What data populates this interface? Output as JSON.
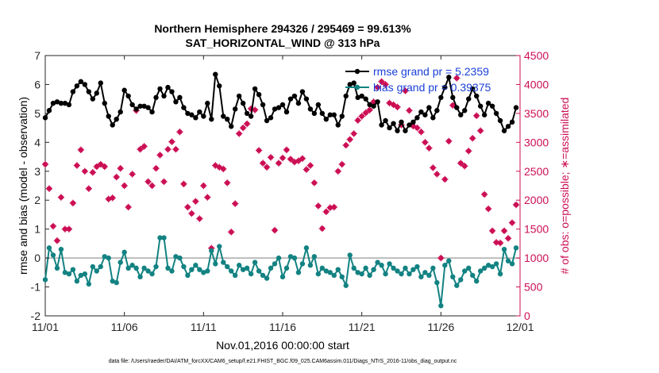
{
  "chart_data": {
    "type": "line",
    "title": "Northern Hemisphere 294326 / 295469 = 99.613%",
    "subtitle": "SAT_HORIZONTAL_WIND @ 313 hPa",
    "xlabel": "Nov.01,2016 00:00:00 start",
    "ylabel_left": "rmse and bias (model - observation)",
    "ylabel_right": "# of obs: o=possible; ∗=assimilated",
    "footnote": "data file: /Users/raeder/DAI/ATM_forcXX/CAM6_setup/f.e21.FHIST_BGC.f09_025.CAM6assim.011/Diags_NTrS_2016-11/obs_diag_output.nc",
    "xlim": [
      0,
      30
    ],
    "ylim_left": [
      -2,
      7
    ],
    "ylim_right": [
      0,
      4500
    ],
    "x_ticks": [
      0,
      5,
      10,
      15,
      20,
      25,
      30
    ],
    "x_tick_labels": [
      "11/01",
      "11/06",
      "11/11",
      "11/16",
      "11/21",
      "11/26",
      "12/01"
    ],
    "y_ticks_left": [
      "-2",
      "-1",
      "0",
      "1",
      "2",
      "3",
      "4",
      "5",
      "6",
      "7"
    ],
    "y_ticks_right": [
      "0",
      "500",
      "1000",
      "1500",
      "2000",
      "2500",
      "3000",
      "3500",
      "4000",
      "4500"
    ],
    "grid": false,
    "legend_position": "top-right",
    "colors": {
      "rmse": "#000000",
      "bias": "#138282",
      "obs": "#cc0f55",
      "ticks_right": "#cc0f55",
      "legend_text": "#1a3fd6",
      "zero_line": "#aaaaaa"
    },
    "series": [
      {
        "name": "rmse grand pr = 5.2359",
        "axis": "left",
        "x": [
          0.0,
          0.25,
          0.5,
          0.75,
          1.0,
          1.25,
          1.5,
          1.75,
          2.0,
          2.25,
          2.5,
          2.75,
          3.0,
          3.25,
          3.5,
          3.75,
          4.0,
          4.25,
          4.5,
          4.75,
          5.0,
          5.25,
          5.5,
          5.75,
          6.0,
          6.25,
          6.5,
          6.75,
          7.0,
          7.25,
          7.5,
          7.75,
          8.0,
          8.25,
          8.5,
          8.75,
          9.0,
          9.25,
          9.5,
          9.75,
          10.0,
          10.25,
          10.5,
          10.75,
          11.0,
          11.25,
          11.5,
          11.75,
          12.0,
          12.25,
          12.5,
          12.75,
          13.0,
          13.25,
          13.5,
          13.75,
          14.0,
          14.25,
          14.5,
          14.75,
          15.0,
          15.25,
          15.5,
          15.75,
          16.0,
          16.25,
          16.5,
          16.75,
          17.0,
          17.25,
          17.5,
          17.75,
          18.0,
          18.25,
          18.5,
          18.75,
          19.0,
          19.25,
          19.5,
          19.75,
          20.0,
          20.25,
          20.5,
          20.75,
          21.0,
          21.25,
          21.5,
          21.75,
          22.0,
          22.25,
          22.5,
          22.75,
          23.0,
          23.25,
          23.5,
          23.75,
          24.0,
          24.25,
          24.5,
          24.75,
          25.0,
          25.25,
          25.5,
          25.75,
          26.0,
          26.25,
          26.5,
          26.75,
          27.0,
          27.25,
          27.5,
          27.75,
          28.0,
          28.25,
          28.5,
          28.75,
          29.0,
          29.25,
          29.5,
          29.75
        ],
        "values": [
          4.85,
          5.1,
          5.35,
          5.4,
          5.35,
          5.35,
          5.3,
          5.75,
          5.95,
          6.1,
          6.0,
          5.75,
          5.5,
          5.7,
          6.05,
          5.35,
          4.9,
          4.6,
          4.8,
          5.05,
          5.8,
          5.6,
          5.3,
          5.15,
          5.25,
          5.25,
          5.2,
          5.05,
          5.55,
          5.85,
          5.6,
          5.9,
          5.75,
          5.4,
          5.55,
          5.2,
          5.0,
          4.95,
          4.85,
          5.05,
          4.9,
          5.35,
          4.8,
          6.35,
          5.95,
          4.9,
          4.8,
          4.55,
          5.15,
          5.6,
          5.35,
          5.0,
          4.9,
          5.85,
          5.65,
          5.3,
          4.75,
          4.85,
          5.15,
          5.2,
          5.3,
          5.05,
          5.5,
          5.6,
          5.35,
          5.75,
          5.5,
          5.15,
          5.0,
          5.3,
          5.0,
          4.8,
          4.95,
          4.95,
          4.6,
          4.9,
          5.6,
          6.0,
          6.05,
          5.55,
          5.6,
          5.5,
          5.3,
          5.25,
          5.4,
          4.6,
          4.75,
          4.5,
          4.65,
          4.4,
          4.7,
          4.4,
          4.6,
          4.7,
          4.85,
          5.05,
          4.95,
          5.2,
          4.85,
          5.1,
          5.55,
          5.9,
          6.25,
          5.55,
          5.2,
          4.95,
          5.1,
          5.5,
          5.85,
          5.6,
          5.25,
          4.95,
          5.35,
          5.25,
          5.0,
          4.75,
          4.4,
          4.55,
          4.7,
          5.2
        ]
      },
      {
        "name": "bias grand pr = 0.39375",
        "axis": "left",
        "x": [
          0.0,
          0.25,
          0.5,
          0.75,
          1.0,
          1.25,
          1.5,
          1.75,
          2.0,
          2.25,
          2.5,
          2.75,
          3.0,
          3.25,
          3.5,
          3.75,
          4.0,
          4.25,
          4.5,
          4.75,
          5.0,
          5.25,
          5.5,
          5.75,
          6.0,
          6.25,
          6.5,
          6.75,
          7.0,
          7.25,
          7.5,
          7.75,
          8.0,
          8.25,
          8.5,
          8.75,
          9.0,
          9.25,
          9.5,
          9.75,
          10.0,
          10.25,
          10.5,
          10.75,
          11.0,
          11.25,
          11.5,
          11.75,
          12.0,
          12.25,
          12.5,
          12.75,
          13.0,
          13.25,
          13.5,
          13.75,
          14.0,
          14.25,
          14.5,
          14.75,
          15.0,
          15.25,
          15.5,
          15.75,
          16.0,
          16.25,
          16.5,
          16.75,
          17.0,
          17.25,
          17.5,
          17.75,
          18.0,
          18.25,
          18.5,
          18.75,
          19.0,
          19.25,
          19.5,
          19.75,
          20.0,
          20.25,
          20.5,
          20.75,
          21.0,
          21.25,
          21.5,
          21.75,
          22.0,
          22.25,
          22.5,
          22.75,
          23.0,
          23.25,
          23.5,
          23.75,
          24.0,
          24.25,
          24.5,
          24.75,
          25.0,
          25.25,
          25.5,
          25.75,
          26.0,
          26.25,
          26.5,
          26.75,
          27.0,
          27.25,
          27.5,
          27.75,
          28.0,
          28.25,
          28.5,
          28.75,
          29.0,
          29.25,
          29.5,
          29.75
        ],
        "values": [
          -0.75,
          0.35,
          0.1,
          -0.35,
          0.3,
          -0.5,
          -0.55,
          -0.4,
          -0.8,
          -0.6,
          -0.55,
          -0.9,
          -0.3,
          -0.45,
          -0.3,
          0.05,
          0.0,
          -0.8,
          -0.85,
          -0.15,
          0.2,
          -0.35,
          -0.25,
          -0.35,
          -0.65,
          -0.35,
          -0.45,
          -0.55,
          -0.3,
          0.7,
          0.7,
          -0.35,
          -0.45,
          0.05,
          0.0,
          -0.3,
          -0.6,
          -0.4,
          -0.25,
          -0.4,
          -0.5,
          -0.45,
          0.25,
          -0.2,
          0.4,
          -0.15,
          -0.3,
          -0.45,
          -0.6,
          -0.25,
          -0.4,
          -0.35,
          -0.55,
          -0.15,
          -0.45,
          -0.6,
          -0.7,
          -0.35,
          -0.2,
          0.0,
          -0.65,
          -0.35,
          0.05,
          0.0,
          -0.5,
          -0.2,
          0.35,
          -0.25,
          0.05,
          -0.55,
          -0.35,
          -0.45,
          -0.5,
          -0.6,
          -0.4,
          -0.65,
          -0.95,
          0.1,
          -0.35,
          -0.5,
          -0.55,
          -0.35,
          -0.6,
          -0.4,
          -0.15,
          -0.25,
          -0.55,
          -0.2,
          -0.35,
          -0.45,
          -0.55,
          -0.35,
          -0.55,
          -0.4,
          -0.3,
          -0.65,
          -0.5,
          -0.6,
          -0.35,
          -0.85,
          -1.65,
          -0.25,
          -0.1,
          -0.65,
          -0.95,
          -0.75,
          -0.45,
          -0.35,
          -0.6,
          -0.8,
          -0.45,
          -0.35,
          -0.25,
          -0.3,
          -0.2,
          -0.55,
          0.3,
          -0.1,
          -0.2,
          0.35
        ]
      },
      {
        "name": "# of obs",
        "axis": "right",
        "x": [
          0.0,
          0.25,
          0.5,
          0.75,
          1.0,
          1.25,
          1.5,
          1.75,
          2.0,
          2.25,
          2.5,
          2.75,
          3.0,
          3.25,
          3.5,
          3.75,
          4.0,
          4.25,
          4.5,
          4.75,
          5.0,
          5.25,
          5.5,
          5.75,
          6.0,
          6.25,
          6.5,
          6.75,
          7.0,
          7.25,
          7.5,
          7.75,
          8.0,
          8.25,
          8.5,
          8.75,
          9.0,
          9.25,
          9.5,
          9.75,
          10.0,
          10.25,
          10.5,
          10.75,
          11.0,
          11.25,
          11.5,
          11.75,
          12.0,
          12.25,
          12.5,
          12.75,
          13.0,
          13.25,
          13.5,
          13.75,
          14.0,
          14.25,
          14.5,
          14.75,
          15.0,
          15.25,
          15.5,
          15.75,
          16.0,
          16.25,
          16.5,
          16.75,
          17.0,
          17.25,
          17.5,
          17.75,
          18.0,
          18.25,
          18.5,
          18.75,
          19.0,
          19.25,
          19.5,
          19.75,
          20.0,
          20.25,
          20.5,
          20.75,
          21.0,
          21.25,
          21.5,
          21.75,
          22.0,
          22.25,
          22.5,
          22.75,
          23.0,
          23.25,
          23.5,
          23.75,
          24.0,
          24.25,
          24.5,
          24.75,
          25.0,
          25.25,
          25.5,
          25.75,
          26.0,
          26.25,
          26.5,
          26.75,
          27.0,
          27.25,
          27.5,
          27.75,
          28.0,
          28.25,
          28.5,
          28.75,
          29.0,
          29.25,
          29.5,
          29.75
        ],
        "values": [
          2620,
          2200,
          1550,
          1300,
          2050,
          1500,
          1500,
          1950,
          2600,
          2870,
          2500,
          2200,
          2480,
          2580,
          2620,
          2580,
          2020,
          2040,
          2400,
          2550,
          2250,
          1880,
          2450,
          3550,
          2880,
          2930,
          2320,
          2250,
          2550,
          2780,
          2320,
          2880,
          3010,
          2880,
          3180,
          2280,
          1880,
          1770,
          1980,
          1680,
          2250,
          2050,
          1170,
          2600,
          2570,
          2540,
          2300,
          1450,
          1940,
          3150,
          3250,
          3320,
          3580,
          3560,
          2860,
          2640,
          2570,
          2740,
          1480,
          2640,
          2730,
          2870,
          2710,
          2660,
          2680,
          2720,
          2530,
          2600,
          2300,
          1900,
          1510,
          1800,
          1870,
          1880,
          2500,
          2620,
          2950,
          3050,
          3150,
          3380,
          3450,
          3510,
          3560,
          3700,
          3950,
          4050,
          4000,
          3680,
          3650,
          3610,
          3300,
          3890,
          3550,
          3280,
          3250,
          3180,
          3000,
          2900,
          2560,
          2450,
          1000,
          2360,
          3020,
          3640,
          4110,
          2640,
          2590,
          2850,
          3070,
          3460,
          3200,
          2100,
          1850,
          1470,
          1270,
          1260,
          1470,
          1340,
          1610,
          1920
        ]
      }
    ]
  }
}
